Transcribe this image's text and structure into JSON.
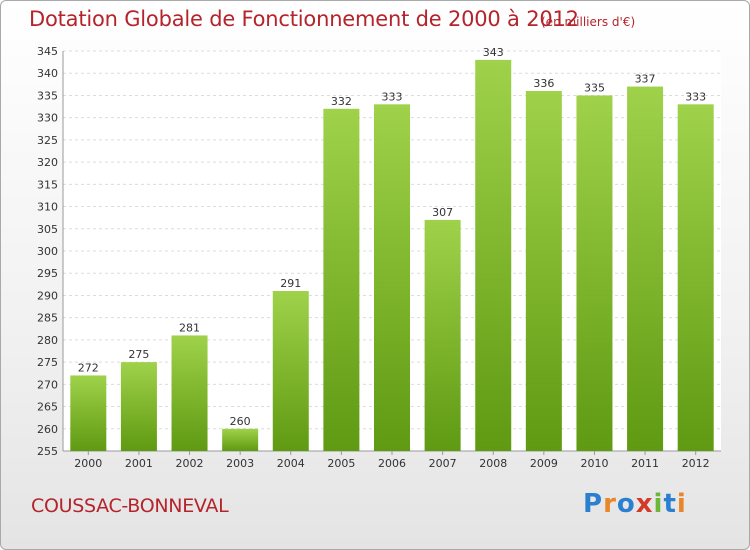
{
  "header": {
    "title": "Dotation Globale de Fonctionnement de 2000 à 2012",
    "unit": "(en milliers d'€)"
  },
  "footer": {
    "city": "COUSSAC-BONNEVAL",
    "logo_text": "Proxiti"
  },
  "colors": {
    "title": "#b5232b",
    "bar_light": "#9fd24a",
    "bar_dark": "#5f9a12",
    "logo": [
      "#2b7fd0",
      "#e8872a",
      "#2b7fd0",
      "#d23a2a",
      "#6cb63a",
      "#2b7fd0",
      "#e8872a"
    ]
  },
  "chart_data": {
    "type": "bar",
    "categories": [
      "2000",
      "2001",
      "2002",
      "2003",
      "2004",
      "2005",
      "2006",
      "2007",
      "2008",
      "2009",
      "2010",
      "2011",
      "2012"
    ],
    "values": [
      272,
      275,
      281,
      260,
      291,
      332,
      333,
      307,
      343,
      336,
      335,
      337,
      333
    ],
    "title": "Dotation Globale de Fonctionnement de 2000 à 2012",
    "ylabel": "",
    "xlabel": "",
    "ylim": [
      255,
      345
    ],
    "yticks": [
      255,
      260,
      265,
      270,
      275,
      280,
      285,
      290,
      295,
      300,
      305,
      310,
      315,
      320,
      325,
      330,
      335,
      340,
      345
    ],
    "grid": true,
    "legend": "none"
  }
}
